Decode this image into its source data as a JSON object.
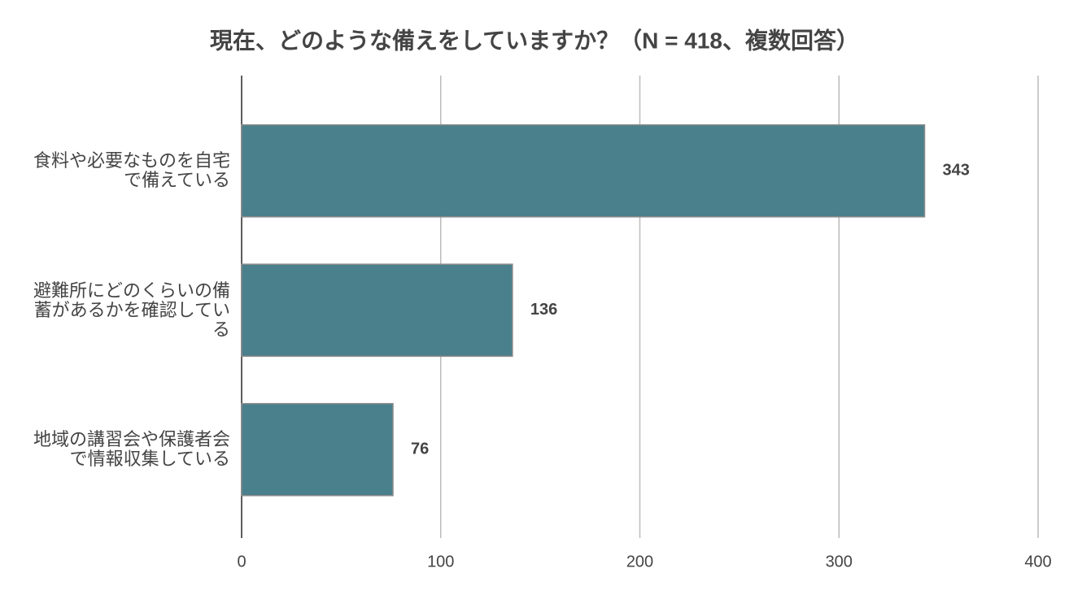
{
  "chart_data": {
    "type": "hbar",
    "title": "現在、どのような備えをしていますか？（N = 418、複数回答）",
    "categories": [
      "食料や必要なものを自宅で備えている",
      "避難所にどのくらいの備蓄があるかを確認している",
      "地域の講習会や保護者会で情報収集している"
    ],
    "values": [
      343,
      136,
      76
    ],
    "color": "#4a7f8c",
    "xlim": [
      0,
      400
    ],
    "xticks": [
      0,
      100,
      200,
      300,
      400
    ],
    "grid": true
  }
}
